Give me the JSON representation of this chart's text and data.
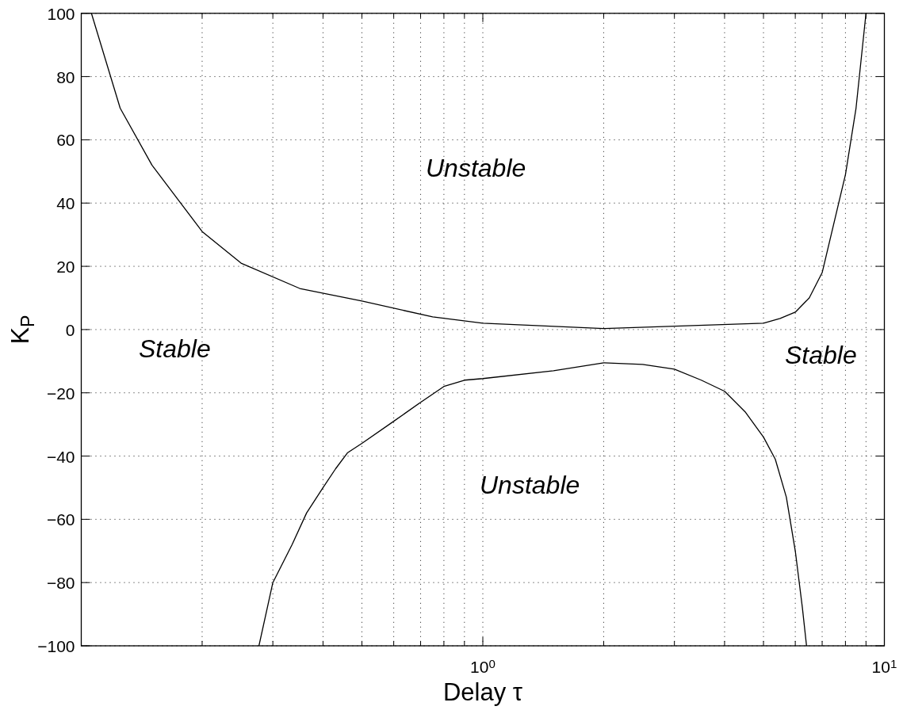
{
  "chart_data": {
    "type": "line",
    "xlabel": "Delay τ",
    "ylabel": "K$_{P}$",
    "log": "x",
    "grid": true,
    "xlim": [
      0.1,
      10
    ],
    "ylim": [
      -100,
      100
    ],
    "xticks": [
      {
        "value": 0.2,
        "label": null
      },
      {
        "value": 0.3,
        "label": null
      },
      {
        "value": 0.4,
        "label": null
      },
      {
        "value": 0.5,
        "label": null
      },
      {
        "value": 0.6,
        "label": null
      },
      {
        "value": 0.7,
        "label": null
      },
      {
        "value": 0.8,
        "label": null
      },
      {
        "value": 0.9,
        "label": null
      },
      {
        "value": 1,
        "label": "10$^{0}$"
      },
      {
        "value": 2,
        "label": null
      },
      {
        "value": 3,
        "label": null
      },
      {
        "value": 4,
        "label": null
      },
      {
        "value": 5,
        "label": null
      },
      {
        "value": 6,
        "label": null
      },
      {
        "value": 7,
        "label": null
      },
      {
        "value": 8,
        "label": null
      },
      {
        "value": 9,
        "label": null
      },
      {
        "value": 10,
        "label": "10$^{1}$"
      }
    ],
    "yticks": [
      {
        "value": -100,
        "label": "−100"
      },
      {
        "value": -80,
        "label": "−80"
      },
      {
        "value": -60,
        "label": "−60"
      },
      {
        "value": -40,
        "label": "−40"
      },
      {
        "value": -20,
        "label": "−20"
      },
      0,
      20,
      40,
      60,
      80,
      100
    ],
    "series": [
      {
        "color": "#000000",
        "x": [
          0.106,
          0.125,
          0.15,
          0.2,
          0.25,
          0.35,
          0.5,
          0.75,
          1,
          2,
          5,
          5.5,
          6,
          6.5,
          7,
          8,
          8.5,
          9
        ],
        "values": [
          100,
          70,
          52,
          31,
          21,
          13,
          9,
          4,
          2,
          0.3,
          2,
          3.5,
          5.5,
          10,
          18,
          49,
          70,
          100
        ]
      },
      {
        "color": "#000000",
        "x": [
          0.277,
          0.3,
          0.335,
          0.364,
          0.4,
          0.43,
          0.46,
          0.5,
          0.6,
          0.7,
          0.8,
          0.9,
          1,
          1.5,
          2,
          2.5,
          3,
          3.5,
          4,
          4.5,
          5,
          5.35,
          5.7,
          6,
          6.25,
          6.4
        ],
        "values": [
          -100,
          -80,
          -68,
          -58,
          -50,
          -44,
          -39,
          -36,
          -29,
          -23,
          -18,
          -16,
          -15.5,
          -13,
          -10.5,
          -11,
          -12.5,
          -16,
          -19.5,
          -26,
          -34,
          -41,
          -53,
          -70,
          -88,
          -100
        ]
      }
    ],
    "annotations": [
      "Unstable",
      "Stable",
      "Stable",
      "Unstable"
    ]
  }
}
